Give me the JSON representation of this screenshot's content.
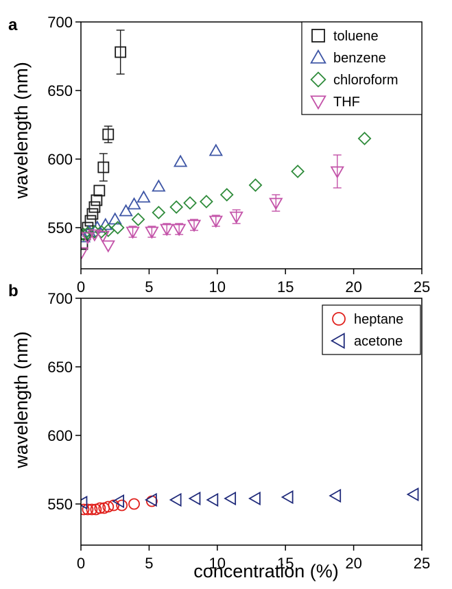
{
  "figure": {
    "xlabel": "concentration (%)"
  },
  "chart_data": [
    {
      "panel": "a",
      "type": "scatter",
      "xlabel": "concentration (%)",
      "ylabel": "wavelength (nm)",
      "xlim": [
        0,
        25
      ],
      "ylim": [
        520,
        700
      ],
      "x_ticks": [
        0,
        5,
        10,
        15,
        20,
        25
      ],
      "y_ticks": [
        550,
        600,
        650,
        700
      ],
      "legend_position": "top-right",
      "grid": false,
      "series": [
        {
          "name": "toluene",
          "marker": "square",
          "color": "#1a1a1a",
          "points": [
            {
              "x": 0.1,
              "y": 538
            },
            {
              "x": 0.3,
              "y": 545
            },
            {
              "x": 0.5,
              "y": 550
            },
            {
              "x": 0.7,
              "y": 555
            },
            {
              "x": 0.85,
              "y": 560
            },
            {
              "x": 1.0,
              "y": 565
            },
            {
              "x": 1.15,
              "y": 570
            },
            {
              "x": 1.35,
              "y": 577
            },
            {
              "x": 1.65,
              "y": 594,
              "err": 10
            },
            {
              "x": 2.0,
              "y": 618,
              "err": 6
            },
            {
              "x": 2.9,
              "y": 678,
              "err": 16
            }
          ]
        },
        {
          "name": "benzene",
          "marker": "triangle-up",
          "color": "#3d55a5",
          "points": [
            {
              "x": 0.2,
              "y": 543
            },
            {
              "x": 0.6,
              "y": 547
            },
            {
              "x": 1.2,
              "y": 550
            },
            {
              "x": 1.8,
              "y": 552
            },
            {
              "x": 2.5,
              "y": 556
            },
            {
              "x": 3.3,
              "y": 562
            },
            {
              "x": 3.9,
              "y": 567
            },
            {
              "x": 4.6,
              "y": 572
            },
            {
              "x": 5.7,
              "y": 580
            },
            {
              "x": 7.3,
              "y": 598
            },
            {
              "x": 9.9,
              "y": 606
            }
          ]
        },
        {
          "name": "chloroform",
          "marker": "diamond",
          "color": "#2e8b3a",
          "points": [
            {
              "x": 0.2,
              "y": 545
            },
            {
              "x": 0.5,
              "y": 546
            },
            {
              "x": 1.0,
              "y": 547
            },
            {
              "x": 1.5,
              "y": 547
            },
            {
              "x": 2.0,
              "y": 548
            },
            {
              "x": 2.7,
              "y": 550
            },
            {
              "x": 4.2,
              "y": 556
            },
            {
              "x": 5.7,
              "y": 561
            },
            {
              "x": 7.0,
              "y": 565
            },
            {
              "x": 8.0,
              "y": 568
            },
            {
              "x": 9.2,
              "y": 569
            },
            {
              "x": 10.7,
              "y": 574
            },
            {
              "x": 12.8,
              "y": 581
            },
            {
              "x": 15.9,
              "y": 591
            },
            {
              "x": 20.8,
              "y": 615
            }
          ]
        },
        {
          "name": "THF",
          "marker": "triangle-down",
          "color": "#c352a8",
          "points": [
            {
              "x": 0.05,
              "y": 532
            },
            {
              "x": 0.5,
              "y": 543
            },
            {
              "x": 1.0,
              "y": 545
            },
            {
              "x": 1.6,
              "y": 544
            },
            {
              "x": 2.0,
              "y": 537
            },
            {
              "x": 3.8,
              "y": 547,
              "err": 4
            },
            {
              "x": 5.2,
              "y": 547,
              "err": 4
            },
            {
              "x": 6.3,
              "y": 549,
              "err": 4
            },
            {
              "x": 7.2,
              "y": 549,
              "err": 4
            },
            {
              "x": 8.3,
              "y": 552,
              "err": 4
            },
            {
              "x": 9.9,
              "y": 555,
              "err": 4
            },
            {
              "x": 11.4,
              "y": 558,
              "err": 5
            },
            {
              "x": 14.3,
              "y": 568,
              "err": 6
            },
            {
              "x": 18.8,
              "y": 591,
              "err": 12
            }
          ]
        }
      ]
    },
    {
      "panel": "b",
      "type": "scatter",
      "xlabel": "concentration (%)",
      "ylabel": "wavelength (nm)",
      "xlim": [
        0,
        25
      ],
      "ylim": [
        520,
        700
      ],
      "x_ticks": [
        0,
        5,
        10,
        15,
        20,
        25
      ],
      "y_ticks": [
        550,
        600,
        650,
        700
      ],
      "legend_position": "top-right",
      "grid": false,
      "series": [
        {
          "name": "heptane",
          "marker": "circle",
          "color": "#e0201c",
          "points": [
            {
              "x": 0.2,
              "y": 546
            },
            {
              "x": 0.5,
              "y": 546
            },
            {
              "x": 0.8,
              "y": 546
            },
            {
              "x": 1.1,
              "y": 546
            },
            {
              "x": 1.4,
              "y": 547
            },
            {
              "x": 1.7,
              "y": 547
            },
            {
              "x": 2.0,
              "y": 548
            },
            {
              "x": 2.4,
              "y": 549
            },
            {
              "x": 3.0,
              "y": 549
            },
            {
              "x": 3.9,
              "y": 550
            },
            {
              "x": 5.2,
              "y": 552
            }
          ]
        },
        {
          "name": "acetone",
          "marker": "triangle-left",
          "color": "#1f2a7a",
          "points": [
            {
              "x": 0.1,
              "y": 551
            },
            {
              "x": 2.8,
              "y": 552
            },
            {
              "x": 5.2,
              "y": 553
            },
            {
              "x": 7.0,
              "y": 553
            },
            {
              "x": 8.4,
              "y": 554
            },
            {
              "x": 9.7,
              "y": 553
            },
            {
              "x": 11.0,
              "y": 554
            },
            {
              "x": 12.8,
              "y": 554
            },
            {
              "x": 15.2,
              "y": 555
            },
            {
              "x": 18.7,
              "y": 556
            },
            {
              "x": 24.4,
              "y": 557
            }
          ]
        }
      ]
    }
  ]
}
